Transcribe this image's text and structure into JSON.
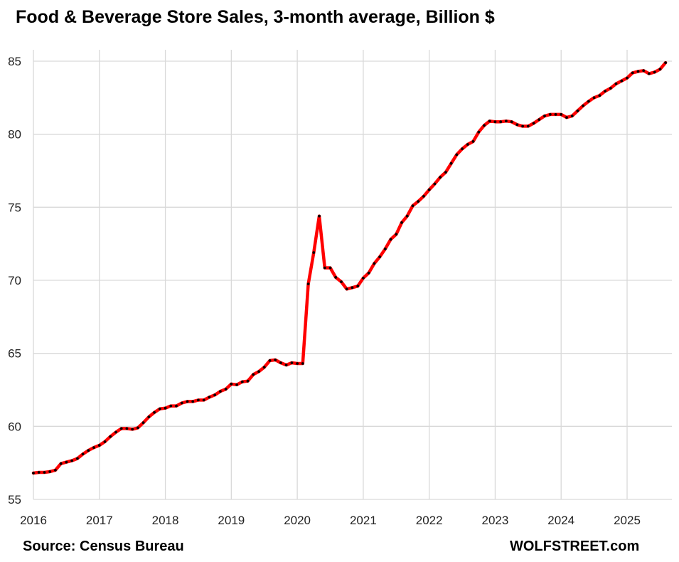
{
  "chart_data": {
    "type": "line",
    "title": "Food & Beverage Store Sales, 3-month average, Billion $",
    "source": "Source: Census Bureau",
    "brand": "WOLFSTREET.com",
    "xlabel": "",
    "ylabel": "",
    "ylim": [
      55,
      85
    ],
    "yticks": [
      55,
      60,
      65,
      70,
      75,
      80,
      85
    ],
    "xlim": [
      "2016-01",
      "2025-08"
    ],
    "xticks": [
      "2016",
      "2017",
      "2018",
      "2019",
      "2020",
      "2021",
      "2022",
      "2023",
      "2024",
      "2025"
    ],
    "grid": true,
    "legend": "none",
    "colors": {
      "line": "#ff0000",
      "marker": "#000000",
      "grid": "#d9d9d9"
    },
    "x": [
      "2016-01",
      "2016-02",
      "2016-03",
      "2016-04",
      "2016-05",
      "2016-06",
      "2016-07",
      "2016-08",
      "2016-09",
      "2016-10",
      "2016-11",
      "2016-12",
      "2017-01",
      "2017-02",
      "2017-03",
      "2017-04",
      "2017-05",
      "2017-06",
      "2017-07",
      "2017-08",
      "2017-09",
      "2017-10",
      "2017-11",
      "2017-12",
      "2018-01",
      "2018-02",
      "2018-03",
      "2018-04",
      "2018-05",
      "2018-06",
      "2018-07",
      "2018-08",
      "2018-09",
      "2018-10",
      "2018-11",
      "2018-12",
      "2019-01",
      "2019-02",
      "2019-03",
      "2019-04",
      "2019-05",
      "2019-06",
      "2019-07",
      "2019-08",
      "2019-09",
      "2019-10",
      "2019-11",
      "2019-12",
      "2020-01",
      "2020-02",
      "2020-03",
      "2020-04",
      "2020-05",
      "2020-06",
      "2020-07",
      "2020-08",
      "2020-09",
      "2020-10",
      "2020-11",
      "2020-12",
      "2021-01",
      "2021-02",
      "2021-03",
      "2021-04",
      "2021-05",
      "2021-06",
      "2021-07",
      "2021-08",
      "2021-09",
      "2021-10",
      "2021-11",
      "2021-12",
      "2022-01",
      "2022-02",
      "2022-03",
      "2022-04",
      "2022-05",
      "2022-06",
      "2022-07",
      "2022-08",
      "2022-09",
      "2022-10",
      "2022-11",
      "2022-12",
      "2023-01",
      "2023-02",
      "2023-03",
      "2023-04",
      "2023-05",
      "2023-06",
      "2023-07",
      "2023-08",
      "2023-09",
      "2023-10",
      "2023-11",
      "2023-12",
      "2024-01",
      "2024-02",
      "2024-03",
      "2024-04",
      "2024-05",
      "2024-06",
      "2024-07",
      "2024-08",
      "2024-09",
      "2024-10",
      "2024-11",
      "2024-12",
      "2025-01",
      "2025-02",
      "2025-03",
      "2025-04",
      "2025-05",
      "2025-06",
      "2025-07",
      "2025-08"
    ],
    "series": [
      {
        "values": [
          56.8,
          56.85,
          56.85,
          56.9,
          57.0,
          57.45,
          57.55,
          57.65,
          57.8,
          58.1,
          58.35,
          58.55,
          58.7,
          58.95,
          59.3,
          59.6,
          59.85,
          59.85,
          59.8,
          59.9,
          60.25,
          60.65,
          60.95,
          61.2,
          61.25,
          61.4,
          61.4,
          61.6,
          61.7,
          61.7,
          61.8,
          61.8,
          62.0,
          62.15,
          62.4,
          62.55,
          62.9,
          62.85,
          63.05,
          63.1,
          63.55,
          63.75,
          64.05,
          64.5,
          64.55,
          64.35,
          64.2,
          64.35,
          64.3,
          64.3,
          69.75,
          71.9,
          74.4,
          70.85,
          70.85,
          70.2,
          69.9,
          69.4,
          69.5,
          69.6,
          70.15,
          70.5,
          71.15,
          71.6,
          72.15,
          72.8,
          73.15,
          73.95,
          74.4,
          75.1,
          75.4,
          75.75,
          76.2,
          76.6,
          77.05,
          77.4,
          78.0,
          78.6,
          79.0,
          79.3,
          79.5,
          80.15,
          80.6,
          80.9,
          80.85,
          80.85,
          80.9,
          80.85,
          80.65,
          80.55,
          80.55,
          80.75,
          81.0,
          81.25,
          81.35,
          81.35,
          81.35,
          81.15,
          81.25,
          81.6,
          81.95,
          82.25,
          82.5,
          82.65,
          82.95,
          83.15,
          83.45,
          83.65,
          83.85,
          84.2,
          84.3,
          84.35,
          84.15,
          84.25,
          84.45,
          84.9
        ]
      }
    ]
  }
}
